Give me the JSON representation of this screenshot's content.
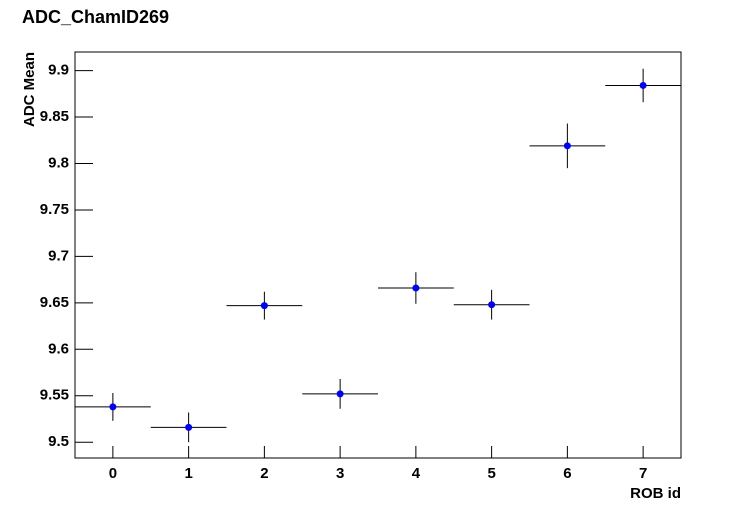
{
  "chart_data": {
    "type": "scatter",
    "title": "ADC_ChamID269",
    "x_label": "ROB id",
    "y_label": "ADC Mean",
    "x": [
      0,
      1,
      2,
      3,
      4,
      5,
      6,
      7
    ],
    "values": [
      9.538,
      9.516,
      9.647,
      9.552,
      9.666,
      9.648,
      9.819,
      9.884
    ],
    "errors": [
      0.015,
      0.016,
      0.015,
      0.016,
      0.017,
      0.016,
      0.024,
      0.018
    ],
    "xerr": [
      0.5,
      0.5,
      0.5,
      0.5,
      0.5,
      0.5,
      0.5,
      0.5
    ],
    "color": "#0000ff",
    "xlim": [
      -0.5,
      7.5
    ],
    "ylim": [
      9.483,
      9.92
    ],
    "xticks": [
      0,
      1,
      2,
      3,
      4,
      5,
      6,
      7
    ],
    "yticks": [
      9.5,
      9.55,
      9.6,
      9.65,
      9.7,
      9.75,
      9.8,
      9.85,
      9.9
    ]
  }
}
